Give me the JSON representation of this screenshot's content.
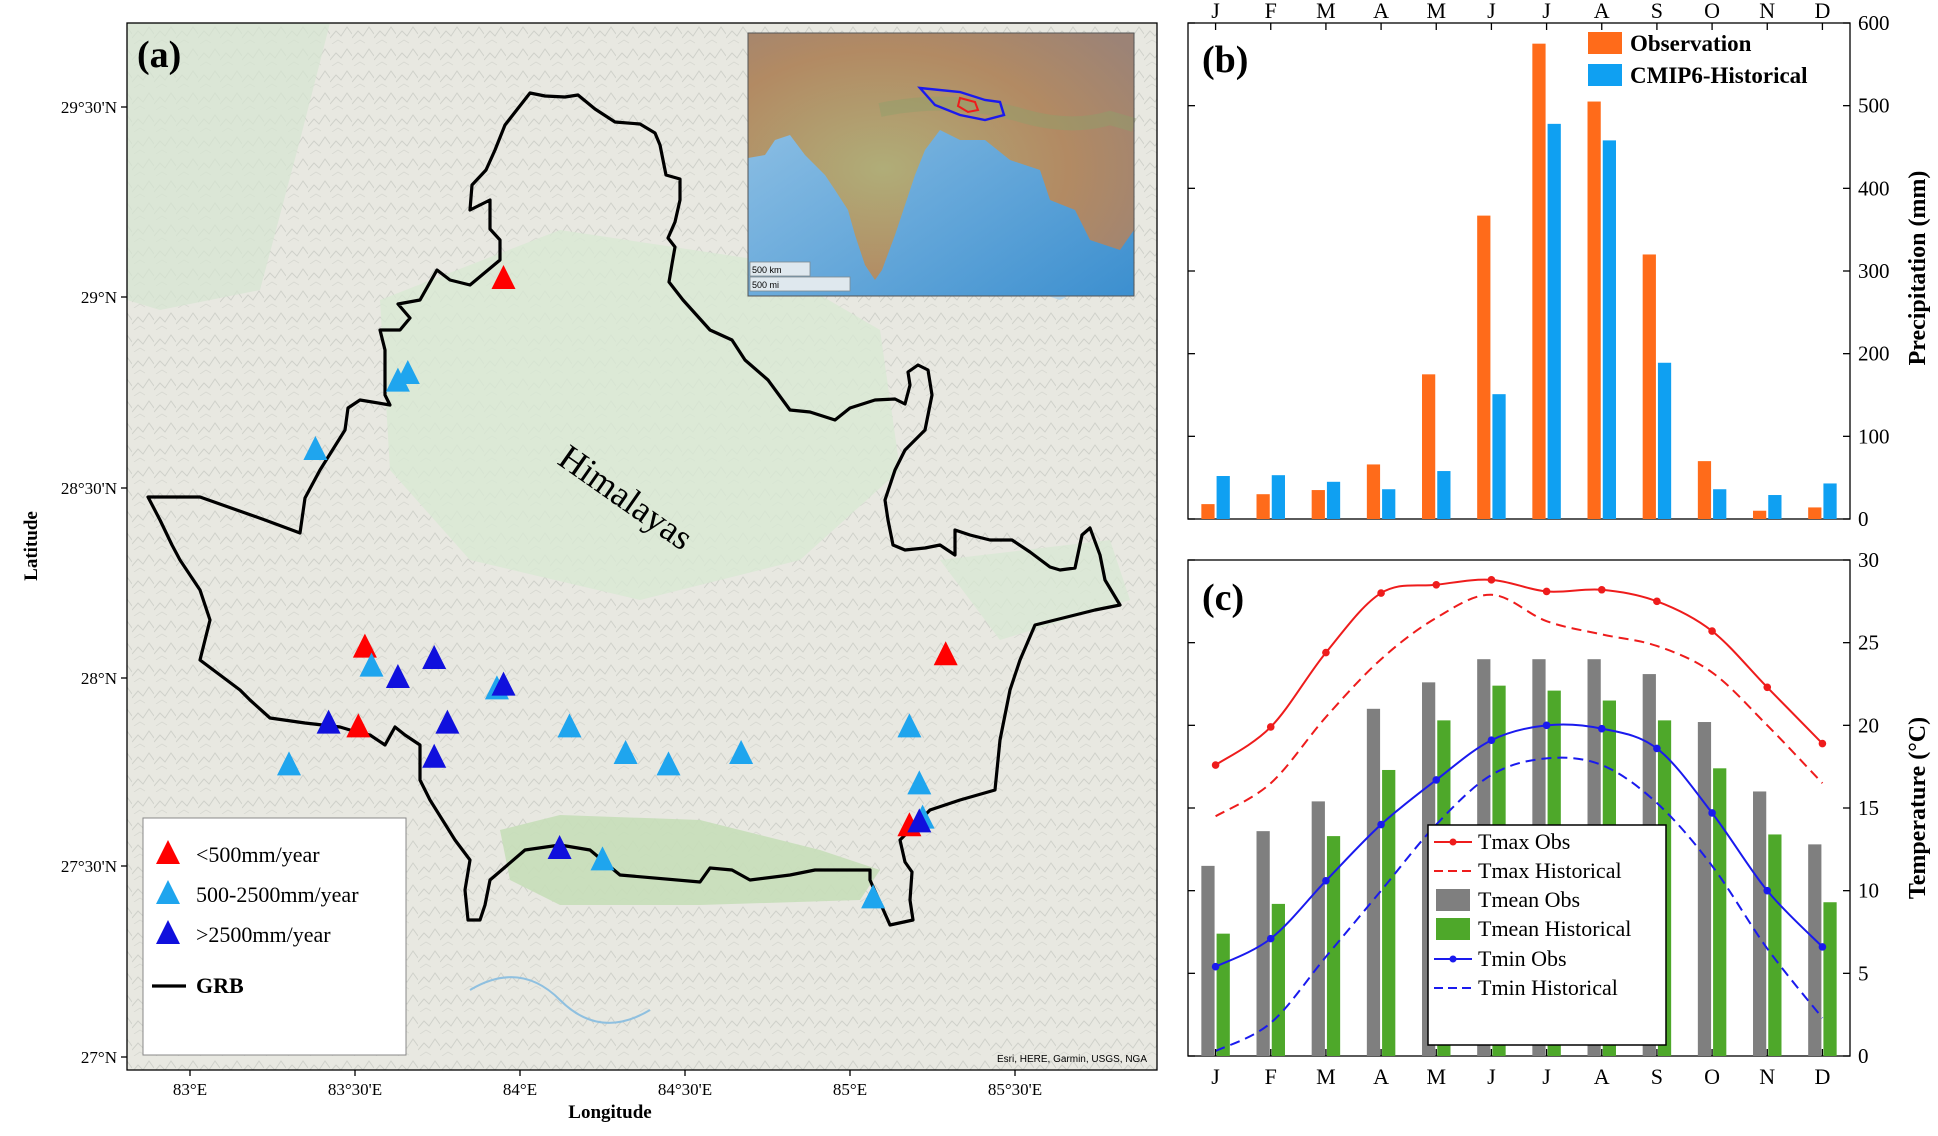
{
  "map": {
    "panel_label": "(a)",
    "lat_ticks": [
      "29°30'N",
      "29°N",
      "28°30'N",
      "28°N",
      "27°30'N",
      "27°N"
    ],
    "lon_ticks": [
      "83°E",
      "83°30'E",
      "84°E",
      "84°30'E",
      "85°E",
      "85°30'E"
    ],
    "xlabel": "Longitude",
    "ylabel": "Latitude",
    "region_label": "Himalayas",
    "attribution": "Esri, HERE, Garmin, USGS, NGA",
    "inset_scale_km": "500 km",
    "inset_scale_mi": "500 mi",
    "legend": {
      "low": "<500mm/year",
      "mid": "500-2500mm/year",
      "high": ">2500mm/year",
      "boundary": "GRB"
    },
    "colors": {
      "low": "#ff0000",
      "mid": "#1fa5ee",
      "high": "#1010dd",
      "boundary": "#000000"
    }
  },
  "chart_data": [
    {
      "type": "bar",
      "panel_label": "(b)",
      "categories": [
        "J",
        "F",
        "M",
        "A",
        "M",
        "J",
        "J",
        "A",
        "S",
        "O",
        "N",
        "D"
      ],
      "series": [
        {
          "name": "Observation",
          "color": "#ff6b1a",
          "values": [
            18,
            30,
            35,
            66,
            175,
            367,
            575,
            505,
            320,
            70,
            10,
            14
          ]
        },
        {
          "name": "CMIP6-Historical",
          "color": "#0fa0f2",
          "values": [
            52,
            53,
            45,
            36,
            58,
            151,
            478,
            458,
            189,
            36,
            29,
            43
          ]
        }
      ],
      "ylabel": "Precipitation (mm)",
      "ylim": [
        0,
        600
      ],
      "yticks": [
        0,
        100,
        200,
        300,
        400,
        500,
        600
      ]
    },
    {
      "type": "bar+line",
      "panel_label": "(c)",
      "categories": [
        "J",
        "F",
        "M",
        "A",
        "M",
        "J",
        "J",
        "A",
        "S",
        "O",
        "N",
        "D"
      ],
      "bars": [
        {
          "name": "Tmean Obs",
          "color": "#7f7f7f",
          "values": [
            11.5,
            13.6,
            15.4,
            21.0,
            22.6,
            24.0,
            24.0,
            24.0,
            23.1,
            20.2,
            16.0,
            12.8
          ]
        },
        {
          "name": "Tmean Historical",
          "color": "#4ea82a",
          "values": [
            7.4,
            9.2,
            13.3,
            17.3,
            20.3,
            22.4,
            22.1,
            21.5,
            20.3,
            17.4,
            13.4,
            9.3
          ]
        }
      ],
      "lines": [
        {
          "name": "Tmax Obs",
          "color": "#ee1c1c",
          "dash": false,
          "markers": true,
          "values": [
            17.6,
            19.9,
            24.4,
            28.0,
            28.5,
            28.8,
            28.1,
            28.2,
            27.5,
            25.7,
            22.3,
            18.9
          ]
        },
        {
          "name": "Tmax Historical",
          "color": "#ee1c1c",
          "dash": true,
          "markers": false,
          "values": [
            14.5,
            16.5,
            20.5,
            24.0,
            26.5,
            27.9,
            26.3,
            25.5,
            24.8,
            23.2,
            20.0,
            16.5
          ]
        },
        {
          "name": "Tmin Obs",
          "color": "#1a1aee",
          "dash": false,
          "markers": true,
          "values": [
            5.4,
            7.1,
            10.6,
            14.0,
            16.7,
            19.1,
            20.0,
            19.8,
            18.6,
            14.7,
            10.0,
            6.6
          ]
        },
        {
          "name": "Tmin Historical",
          "color": "#1a1aee",
          "dash": true,
          "markers": false,
          "values": [
            0.3,
            2.0,
            6.0,
            10.0,
            14.0,
            17.0,
            18.0,
            17.6,
            15.3,
            11.5,
            6.5,
            2.3
          ]
        }
      ],
      "ylabel": "Temperature (°C)",
      "ylim": [
        0,
        30
      ],
      "yticks": [
        0,
        5,
        10,
        15,
        20,
        25,
        30
      ]
    }
  ],
  "stations": {
    "low": [
      [
        83.95,
        29.05
      ],
      [
        83.53,
        28.08
      ],
      [
        83.51,
        27.87
      ],
      [
        85.29,
        28.06
      ],
      [
        85.18,
        27.61
      ]
    ],
    "mid": [
      [
        83.38,
        28.6
      ],
      [
        83.63,
        28.78
      ],
      [
        83.66,
        28.8
      ],
      [
        83.55,
        28.03
      ],
      [
        83.93,
        27.97
      ],
      [
        84.15,
        27.87
      ],
      [
        84.32,
        27.8
      ],
      [
        84.45,
        27.77
      ],
      [
        84.67,
        27.8
      ],
      [
        85.18,
        27.87
      ],
      [
        85.21,
        27.72
      ],
      [
        85.22,
        27.63
      ],
      [
        83.3,
        27.77
      ],
      [
        84.25,
        27.52
      ],
      [
        85.07,
        27.42
      ]
    ],
    "high": [
      [
        83.63,
        28.0
      ],
      [
        83.74,
        28.05
      ],
      [
        83.95,
        27.98
      ],
      [
        83.78,
        27.88
      ],
      [
        83.42,
        27.88
      ],
      [
        83.74,
        27.79
      ],
      [
        84.12,
        27.55
      ],
      [
        85.21,
        27.62
      ]
    ]
  }
}
